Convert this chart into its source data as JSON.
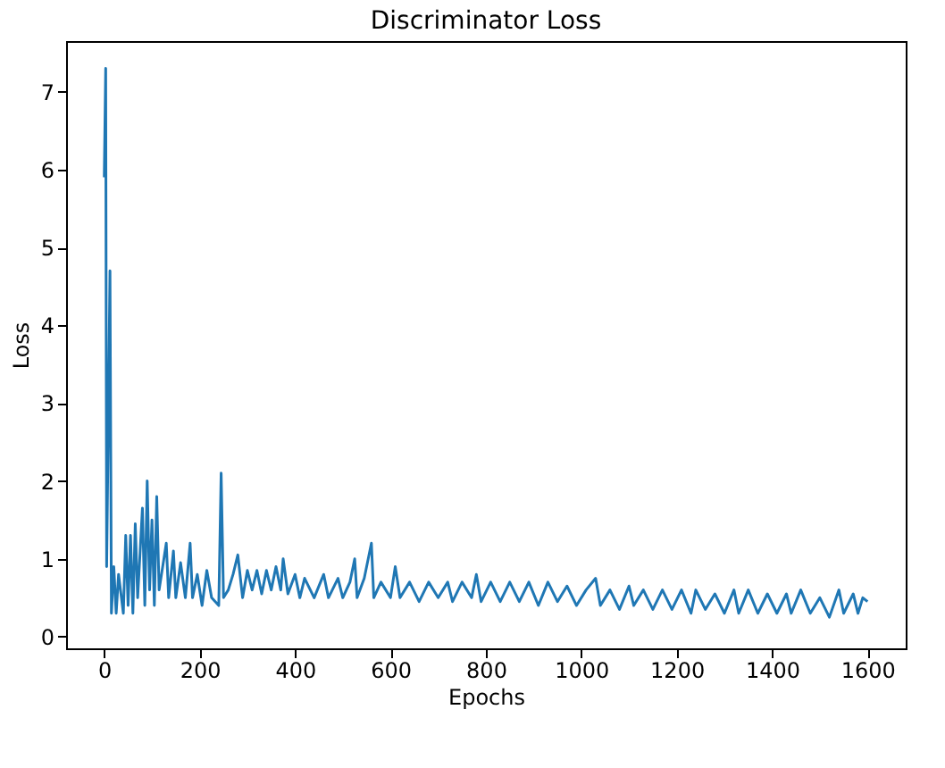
{
  "chart_data": {
    "type": "line",
    "title": "Discriminator Loss",
    "xlabel": "Epochs",
    "ylabel": "Loss",
    "xlim": [
      -80,
      1680
    ],
    "xticks": [
      0,
      200,
      400,
      600,
      800,
      1000,
      1200,
      1400,
      1600
    ],
    "ylim": [
      -0.15,
      7.65
    ],
    "yticks": [
      0,
      1,
      2,
      3,
      4,
      5,
      6,
      7
    ],
    "grid": false,
    "marker": "none",
    "line_style": "solid",
    "x": [
      0,
      3,
      5,
      8,
      12,
      15,
      20,
      25,
      30,
      40,
      45,
      50,
      55,
      60,
      65,
      70,
      80,
      85,
      90,
      95,
      100,
      105,
      110,
      115,
      130,
      135,
      145,
      150,
      160,
      170,
      180,
      185,
      195,
      205,
      215,
      225,
      240,
      245,
      250,
      260,
      270,
      280,
      290,
      300,
      310,
      320,
      330,
      340,
      350,
      360,
      370,
      375,
      385,
      400,
      410,
      420,
      440,
      460,
      470,
      490,
      500,
      515,
      525,
      530,
      545,
      560,
      565,
      580,
      600,
      610,
      620,
      640,
      660,
      680,
      700,
      720,
      730,
      750,
      770,
      780,
      790,
      810,
      830,
      850,
      870,
      890,
      910,
      930,
      950,
      970,
      990,
      1010,
      1030,
      1040,
      1060,
      1080,
      1100,
      1110,
      1130,
      1150,
      1170,
      1190,
      1210,
      1230,
      1240,
      1260,
      1280,
      1300,
      1320,
      1330,
      1350,
      1370,
      1390,
      1410,
      1430,
      1440,
      1460,
      1480,
      1500,
      1520,
      1540,
      1550,
      1570,
      1580,
      1590,
      1600
    ],
    "series": [
      {
        "color": "#1f77b4",
        "values": [
          5.9,
          7.3,
          0.9,
          2.5,
          4.7,
          0.3,
          0.9,
          0.3,
          0.8,
          0.3,
          1.3,
          0.4,
          1.3,
          0.3,
          1.45,
          0.5,
          1.65,
          0.4,
          2.0,
          0.6,
          1.5,
          0.4,
          1.8,
          0.6,
          1.2,
          0.5,
          1.1,
          0.5,
          0.95,
          0.5,
          1.2,
          0.5,
          0.8,
          0.4,
          0.85,
          0.5,
          0.4,
          2.1,
          0.5,
          0.6,
          0.8,
          1.05,
          0.5,
          0.85,
          0.6,
          0.85,
          0.55,
          0.85,
          0.6,
          0.9,
          0.6,
          1.0,
          0.55,
          0.8,
          0.5,
          0.75,
          0.5,
          0.8,
          0.5,
          0.75,
          0.5,
          0.7,
          1.0,
          0.5,
          0.75,
          1.2,
          0.5,
          0.7,
          0.5,
          0.9,
          0.5,
          0.7,
          0.45,
          0.7,
          0.5,
          0.7,
          0.45,
          0.7,
          0.5,
          0.8,
          0.45,
          0.7,
          0.45,
          0.7,
          0.45,
          0.7,
          0.4,
          0.7,
          0.45,
          0.65,
          0.4,
          0.6,
          0.75,
          0.4,
          0.6,
          0.35,
          0.65,
          0.4,
          0.6,
          0.35,
          0.6,
          0.35,
          0.6,
          0.3,
          0.6,
          0.35,
          0.55,
          0.3,
          0.6,
          0.3,
          0.6,
          0.3,
          0.55,
          0.3,
          0.55,
          0.3,
          0.6,
          0.3,
          0.5,
          0.25,
          0.6,
          0.3,
          0.55,
          0.3,
          0.5,
          0.45
        ]
      }
    ]
  }
}
